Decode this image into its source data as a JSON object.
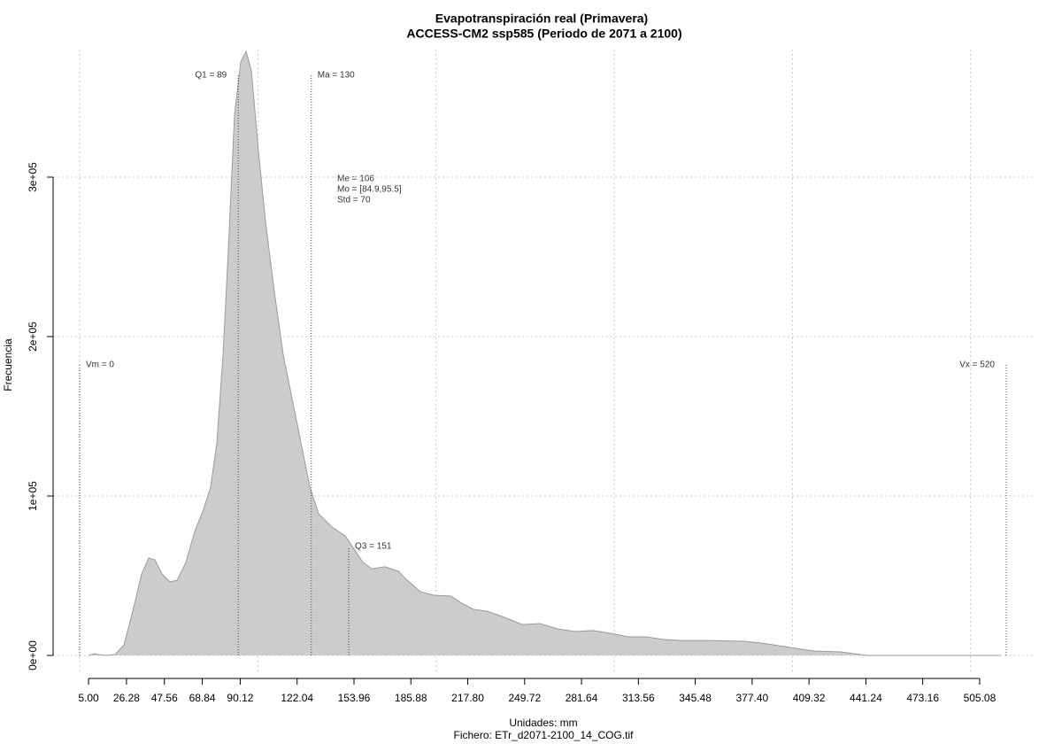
{
  "chart_data": {
    "type": "area",
    "title": "Evapotranspiración real (Primavera)",
    "subtitle": "ACCESS-CM2 ssp585 (Periodo de 2071 a 2100)",
    "x_label": "Unidades: mm",
    "caption": "Fichero: ETr_d2071-2100_14_COG.tif",
    "y_label": "Frecuencia",
    "fill_color": "#cccccc",
    "line_color": "#9a9a9a",
    "xlim": [
      -14.9,
      536.4
    ],
    "ylim": [
      -11100,
      380000
    ],
    "xticks": [
      {
        "value": 5,
        "label": "5.00"
      },
      {
        "value": 26.28,
        "label": "26.28"
      },
      {
        "value": 47.56,
        "label": "47.56"
      },
      {
        "value": 68.84,
        "label": "68.84"
      },
      {
        "value": 90.12,
        "label": "90.12"
      },
      {
        "value": 122.04,
        "label": "122.04"
      },
      {
        "value": 153.96,
        "label": "153.96"
      },
      {
        "value": 185.88,
        "label": "185.88"
      },
      {
        "value": 217.8,
        "label": "217.80"
      },
      {
        "value": 249.72,
        "label": "249.72"
      },
      {
        "value": 281.64,
        "label": "281.64"
      },
      {
        "value": 313.56,
        "label": "313.56"
      },
      {
        "value": 345.48,
        "label": "345.48"
      },
      {
        "value": 377.4,
        "label": "377.40"
      },
      {
        "value": 409.32,
        "label": "409.32"
      },
      {
        "value": 441.24,
        "label": "441.24"
      },
      {
        "value": 473.16,
        "label": "473.16"
      },
      {
        "value": 505.08,
        "label": "505.08"
      }
    ],
    "yticks": [
      {
        "value": 0,
        "label": "0e+00"
      },
      {
        "value": 100000,
        "label": "1e+05"
      },
      {
        "value": 200000,
        "label": "2e+05"
      },
      {
        "value": 300000,
        "label": "3e+05"
      }
    ],
    "grid": true,
    "grid_x": [
      0,
      100,
      200,
      300,
      400,
      500
    ],
    "x": [
      5.0,
      8.0,
      11.0,
      14.9,
      19.9,
      24.9,
      29.8,
      34.8,
      38.8,
      42.2,
      46.2,
      50.7,
      54.7,
      59.6,
      64.6,
      69.6,
      73.5,
      77.0,
      80.5,
      83.5,
      86.9,
      90.4,
      93.4,
      96.4,
      100.3,
      104.3,
      109.3,
      114.2,
      119.2,
      124.2,
      129.2,
      134.1,
      141.6,
      149.0,
      154.0,
      159.0,
      163.9,
      171.4,
      178.8,
      183.8,
      191.2,
      198.7,
      208.6,
      213.6,
      221.0,
      228.5,
      238.4,
      248.3,
      258.3,
      268.2,
      278.1,
      288.1,
      298.0,
      307.9,
      317.9,
      327.8,
      337.7,
      352.6,
      372.5,
      382.4,
      392.4,
      402.3,
      412.2,
      427.1,
      442.0,
      452.0,
      516.5
    ],
    "values": [
      0,
      1000,
      600,
      0,
      600,
      6700,
      27800,
      51100,
      61100,
      60000,
      51100,
      46100,
      47200,
      58300,
      77800,
      91700,
      105600,
      133300,
      188900,
      255600,
      338900,
      372200,
      378900,
      366700,
      316700,
      272200,
      227800,
      188900,
      161100,
      133300,
      105600,
      88900,
      80600,
      75000,
      66700,
      58300,
      54400,
      55600,
      52800,
      47200,
      40000,
      37800,
      37200,
      33300,
      28900,
      27800,
      23900,
      19400,
      20000,
      16700,
      15000,
      15600,
      13900,
      11700,
      11700,
      10000,
      9400,
      9400,
      8900,
      7800,
      6100,
      4400,
      2800,
      2200,
      0,
      0,
      0
    ],
    "markers": [
      {
        "label": "Vm = 0",
        "x": 0,
        "y": 182200,
        "side": "right"
      },
      {
        "label": "Q1 = 89",
        "x": 89,
        "y": 363900,
        "side": "left"
      },
      {
        "label": "Ma = 130",
        "x": 130,
        "y": 363900,
        "side": "right"
      },
      {
        "label": "Q3 = 151",
        "x": 151,
        "y": 68300,
        "side": "right"
      },
      {
        "label": "Vx = 520",
        "x": 520,
        "y": 182200,
        "side": "left"
      }
    ],
    "stats": [
      "Me = 106",
      "Mo = [84.9,95.5]",
      "Std = 70"
    ]
  }
}
